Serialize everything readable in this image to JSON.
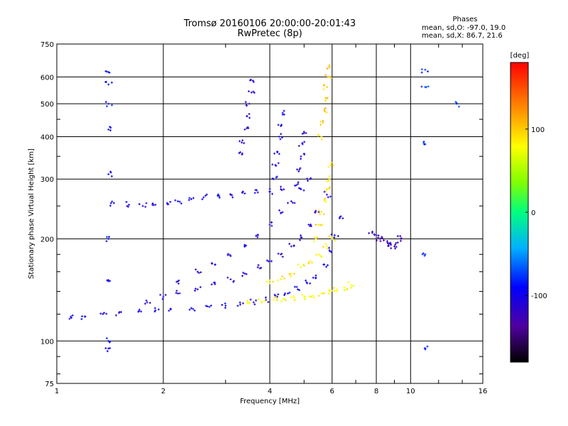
{
  "title": {
    "line1": "Tromsø 20160106 20:00:00-20:01:43",
    "line2": "RwPretec (8p)"
  },
  "phase_stats": {
    "title": "Phases",
    "o_mode": "mean, sd,O: -97.0, 19.0",
    "x_mode": "mean, sd,X: 86.7, 21.6"
  },
  "chart_data": {
    "type": "scatter",
    "xlabel": "Frequency [MHz]",
    "ylabel": "Stationary phase Virtual Height [km]",
    "x_scale": "log",
    "y_scale": "log",
    "xlim": [
      1,
      16
    ],
    "ylim": [
      75,
      750
    ],
    "x_ticks": [
      1,
      2,
      4,
      6,
      8,
      10,
      16
    ],
    "y_ticks": [
      75,
      100,
      200,
      300,
      400,
      500,
      600,
      750
    ],
    "grid": true,
    "colorbar": {
      "label": "[deg]",
      "range": [
        -180,
        180
      ],
      "ticks": [
        100,
        0,
        -100
      ],
      "colormap": [
        "#000000",
        "#5000a0",
        "#0000ff",
        "#00b0ff",
        "#00ff80",
        "#80ff00",
        "#ffff00",
        "#ff8000",
        "#ff0000"
      ]
    },
    "series": [
      {
        "trace": "O-mode F1/F2 main trace, lower branch",
        "phase": -100,
        "points": [
          [
            1.0,
            115
          ],
          [
            1.1,
            117
          ],
          [
            1.2,
            118
          ],
          [
            1.35,
            120
          ],
          [
            1.5,
            121
          ],
          [
            1.7,
            122
          ],
          [
            1.9,
            123
          ],
          [
            2.1,
            124
          ],
          [
            2.4,
            125
          ],
          [
            2.7,
            126
          ],
          [
            3.0,
            127
          ],
          [
            3.3,
            128
          ],
          [
            3.6,
            130
          ],
          [
            3.9,
            132
          ],
          [
            4.2,
            135
          ],
          [
            4.5,
            138
          ],
          [
            4.8,
            142
          ],
          [
            5.1,
            148
          ],
          [
            5.4,
            156
          ],
          [
            5.7,
            168
          ],
          [
            5.9,
            185
          ],
          [
            6.1,
            205
          ],
          [
            6.3,
            230
          ]
        ]
      },
      {
        "trace": "O-mode middle branch",
        "phase": -110,
        "points": [
          [
            1.8,
            130
          ],
          [
            2.0,
            135
          ],
          [
            2.2,
            138
          ],
          [
            2.5,
            142
          ],
          [
            2.8,
            147
          ],
          [
            3.1,
            152
          ],
          [
            3.4,
            158
          ],
          [
            3.7,
            165
          ],
          [
            4.0,
            172
          ],
          [
            4.3,
            180
          ],
          [
            4.6,
            190
          ],
          [
            4.9,
            202
          ],
          [
            5.2,
            218
          ],
          [
            5.5,
            240
          ],
          [
            5.8,
            270
          ]
        ]
      },
      {
        "trace": "O-mode upper oblique branch",
        "phase": -105,
        "points": [
          [
            2.2,
            150
          ],
          [
            2.5,
            160
          ],
          [
            2.8,
            168
          ],
          [
            3.1,
            178
          ],
          [
            3.4,
            190
          ],
          [
            3.7,
            205
          ],
          [
            4.0,
            220
          ],
          [
            4.3,
            238
          ],
          [
            4.6,
            258
          ],
          [
            4.9,
            280
          ],
          [
            5.2,
            300
          ]
        ]
      },
      {
        "trace": "F2 layer plateau",
        "phase": -100,
        "points": [
          [
            1.45,
            255
          ],
          [
            1.6,
            252
          ],
          [
            1.75,
            250
          ],
          [
            1.9,
            252
          ],
          [
            2.05,
            255
          ],
          [
            2.2,
            258
          ],
          [
            2.4,
            262
          ],
          [
            2.6,
            265
          ],
          [
            2.85,
            268
          ],
          [
            3.1,
            270
          ],
          [
            3.4,
            272
          ],
          [
            3.7,
            274
          ],
          [
            4.0,
            276
          ],
          [
            4.3,
            280
          ]
        ]
      },
      {
        "trace": "Cusp near 3.5 MHz",
        "phase": -110,
        "points": [
          [
            3.3,
            360
          ],
          [
            3.35,
            390
          ],
          [
            3.4,
            420
          ],
          [
            3.45,
            460
          ],
          [
            3.5,
            500
          ],
          [
            3.55,
            540
          ],
          [
            3.6,
            580
          ]
        ]
      },
      {
        "trace": "Cusp near 4.3 MHz",
        "phase": -100,
        "points": [
          [
            4.1,
            300
          ],
          [
            4.15,
            330
          ],
          [
            4.2,
            360
          ],
          [
            4.25,
            400
          ],
          [
            4.3,
            430
          ],
          [
            4.35,
            470
          ]
        ]
      },
      {
        "trace": "Cusp near 5 MHz",
        "phase": -110,
        "points": [
          [
            4.8,
            290
          ],
          [
            4.85,
            320
          ],
          [
            4.9,
            350
          ],
          [
            4.95,
            380
          ],
          [
            5.0,
            410
          ]
        ]
      },
      {
        "trace": "X-mode lower branch",
        "phase": 90,
        "points": [
          [
            3.5,
            130
          ],
          [
            3.8,
            131
          ],
          [
            4.1,
            132
          ],
          [
            4.4,
            133
          ],
          [
            4.7,
            134
          ],
          [
            5.0,
            135
          ],
          [
            5.3,
            136
          ],
          [
            5.6,
            138
          ],
          [
            5.9,
            140
          ],
          [
            6.2,
            142
          ],
          [
            6.5,
            144
          ],
          [
            6.8,
            146
          ]
        ]
      },
      {
        "trace": "X-mode middle branch",
        "phase": 95,
        "points": [
          [
            4.0,
            148
          ],
          [
            4.3,
            152
          ],
          [
            4.6,
            158
          ],
          [
            4.9,
            165
          ],
          [
            5.2,
            172
          ],
          [
            5.5,
            180
          ],
          [
            5.8,
            190
          ],
          [
            6.0,
            200
          ]
        ]
      },
      {
        "trace": "X-mode steep rise",
        "phase": 100,
        "points": [
          [
            5.4,
            200
          ],
          [
            5.5,
            220
          ],
          [
            5.6,
            240
          ],
          [
            5.7,
            260
          ],
          [
            5.8,
            280
          ],
          [
            5.9,
            300
          ],
          [
            5.95,
            330
          ]
        ]
      },
      {
        "trace": "X-mode upper cusp",
        "phase": 110,
        "points": [
          [
            5.6,
            400
          ],
          [
            5.65,
            440
          ],
          [
            5.7,
            480
          ],
          [
            5.75,
            520
          ],
          [
            5.8,
            560
          ],
          [
            5.85,
            600
          ],
          [
            5.9,
            640
          ]
        ]
      },
      {
        "trace": "Far trace near 8-9 MHz",
        "phase": -120,
        "points": [
          [
            7.8,
            210
          ],
          [
            8.0,
            205
          ],
          [
            8.2,
            200
          ],
          [
            8.4,
            198
          ],
          [
            8.6,
            195
          ],
          [
            8.8,
            192
          ],
          [
            9.0,
            190
          ],
          [
            9.2,
            195
          ],
          [
            9.4,
            200
          ]
        ]
      },
      {
        "trace": "Isolated echoes 1.4 MHz",
        "phase": -90,
        "points": [
          [
            1.4,
            620
          ],
          [
            1.4,
            570
          ],
          [
            1.4,
            500
          ],
          [
            1.4,
            420
          ],
          [
            1.4,
            310
          ],
          [
            1.4,
            200
          ],
          [
            1.4,
            150
          ],
          [
            1.4,
            100
          ],
          [
            1.4,
            95
          ]
        ]
      },
      {
        "trace": "Isolated echoes 11 MHz",
        "phase": -80,
        "points": [
          [
            11.0,
            630
          ],
          [
            11.0,
            560
          ],
          [
            11.0,
            380
          ],
          [
            11.0,
            180
          ],
          [
            11.0,
            95
          ],
          [
            13.5,
            500
          ]
        ]
      }
    ]
  }
}
